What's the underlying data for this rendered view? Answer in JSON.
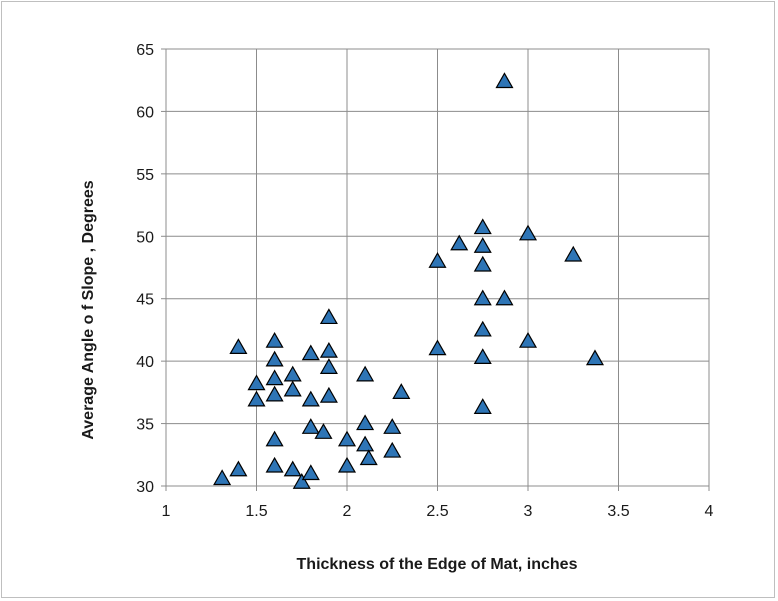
{
  "chart_data": {
    "type": "scatter",
    "title": "",
    "xlabel": "Thickness of the Edge of Mat, inches",
    "ylabel": "Average  Angle o f Slope , Degrees",
    "xlim": [
      1,
      4
    ],
    "ylim": [
      30,
      65
    ],
    "x_ticks": [
      "1",
      "1.5",
      "2",
      "2.5",
      "3",
      "3.5",
      "4"
    ],
    "y_ticks": [
      "30",
      "35",
      "40",
      "45",
      "50",
      "55",
      "60",
      "65"
    ],
    "grid": true,
    "legend": "none",
    "marker": "triangle",
    "marker_color": "#2e75b6",
    "marker_edge": "#000000",
    "points": [
      [
        1.31,
        30.6
      ],
      [
        1.4,
        31.3
      ],
      [
        1.4,
        41.1
      ],
      [
        1.5,
        38.2
      ],
      [
        1.5,
        36.9
      ],
      [
        1.6,
        41.6
      ],
      [
        1.6,
        40.1
      ],
      [
        1.6,
        38.6
      ],
      [
        1.6,
        37.3
      ],
      [
        1.6,
        33.7
      ],
      [
        1.6,
        31.6
      ],
      [
        1.7,
        38.9
      ],
      [
        1.7,
        37.7
      ],
      [
        1.7,
        31.3
      ],
      [
        1.75,
        30.3
      ],
      [
        1.8,
        40.6
      ],
      [
        1.8,
        36.9
      ],
      [
        1.8,
        34.7
      ],
      [
        1.8,
        31.0
      ],
      [
        1.87,
        34.3
      ],
      [
        1.9,
        43.5
      ],
      [
        1.9,
        40.8
      ],
      [
        1.9,
        39.5
      ],
      [
        1.9,
        37.2
      ],
      [
        2.0,
        33.7
      ],
      [
        2.0,
        31.6
      ],
      [
        2.1,
        38.9
      ],
      [
        2.1,
        35.0
      ],
      [
        2.1,
        33.3
      ],
      [
        2.12,
        32.2
      ],
      [
        2.25,
        34.7
      ],
      [
        2.25,
        32.8
      ],
      [
        2.3,
        37.5
      ],
      [
        2.5,
        48.0
      ],
      [
        2.5,
        41.0
      ],
      [
        2.62,
        49.4
      ],
      [
        2.75,
        50.7
      ],
      [
        2.75,
        49.2
      ],
      [
        2.75,
        47.7
      ],
      [
        2.75,
        45.0
      ],
      [
        2.75,
        42.5
      ],
      [
        2.75,
        40.3
      ],
      [
        2.75,
        36.3
      ],
      [
        2.87,
        62.4
      ],
      [
        2.87,
        45.0
      ],
      [
        3.0,
        50.2
      ],
      [
        3.0,
        41.6
      ],
      [
        3.25,
        48.5
      ],
      [
        3.37,
        40.2
      ]
    ]
  }
}
